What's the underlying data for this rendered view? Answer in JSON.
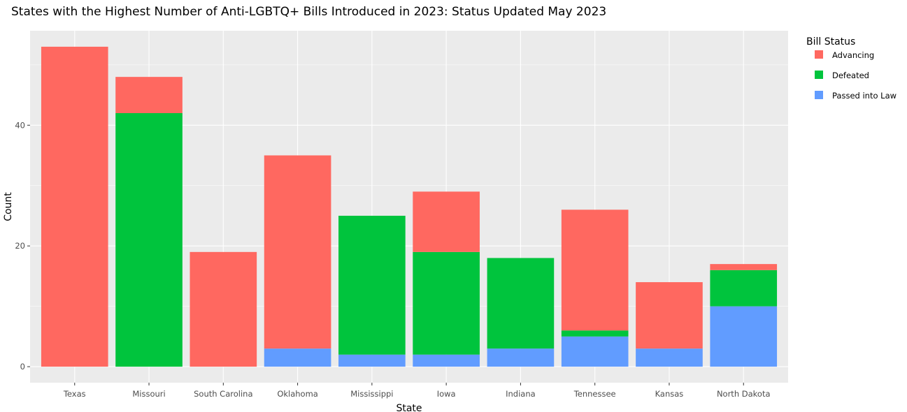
{
  "chart_data": {
    "type": "bar",
    "stacked": true,
    "title": "States with the Highest Number of Anti-LGBTQ+ Bills Introduced in 2023: Status Updated May 2023",
    "xlabel": "State",
    "ylabel": "Count",
    "categories": [
      "Texas",
      "Missouri",
      "South Carolina",
      "Oklahoma",
      "Mississippi",
      "Iowa",
      "Indiana",
      "Tennessee",
      "Kansas",
      "North Dakota"
    ],
    "series": [
      {
        "name": "Passed into Law",
        "color": "#619CFF",
        "values": [
          0,
          0,
          0,
          3,
          2,
          2,
          3,
          5,
          3,
          10
        ]
      },
      {
        "name": "Defeated",
        "color": "#00C43D",
        "values": [
          0,
          42,
          0,
          0,
          23,
          17,
          15,
          1,
          0,
          6
        ]
      },
      {
        "name": "Advancing",
        "color": "#FF6860",
        "values": [
          53,
          6,
          19,
          32,
          0,
          10,
          0,
          20,
          11,
          1
        ]
      }
    ],
    "yticks": [
      0,
      20,
      40
    ],
    "ylim": [
      -2.65,
      55.65
    ],
    "grid": true,
    "panel_background": "#EBEBEB",
    "legend": {
      "title": "Bill Status",
      "position": "right",
      "order": [
        "Advancing",
        "Defeated",
        "Passed into Law"
      ]
    }
  }
}
